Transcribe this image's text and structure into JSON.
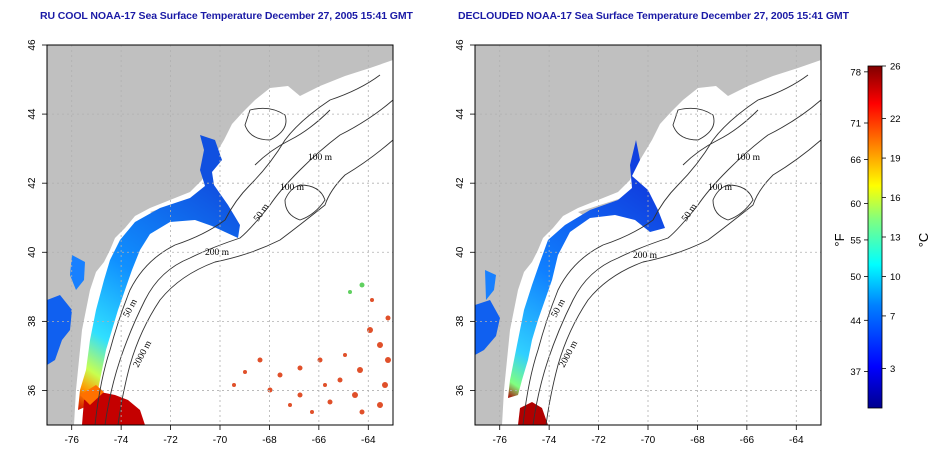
{
  "titles": {
    "left": "RU COOL NOAA-17 Sea Surface Temperature December 27, 2005 15:41 GMT",
    "right": "DECLOUDED NOAA-17 Sea Surface Temperature December 27, 2005 15:41 GMT"
  },
  "axes": {
    "lon_labels": [
      "-76",
      "-74",
      "-72",
      "-70",
      "-68",
      "-66",
      "-64"
    ],
    "lon_values": [
      -76,
      -74,
      -72,
      -70,
      -68,
      -66,
      -64
    ],
    "lon_range": [
      -77,
      -63
    ],
    "lat_labels": [
      "36",
      "38",
      "40",
      "42",
      "44",
      "46"
    ],
    "lat_values": [
      36,
      38,
      40,
      42,
      44,
      46
    ],
    "lat_range": [
      35,
      46
    ],
    "grid": "dotted"
  },
  "contour_labels": {
    "left": [
      "100 m",
      "100 m",
      "50 m",
      "200 m",
      "50 m",
      "2000 m"
    ],
    "right": [
      "100 m",
      "100 m",
      "50 m",
      "200 m",
      "50 m",
      "2000 m"
    ]
  },
  "colorbar": {
    "fahrenheit_unit": "°F",
    "celsius_unit": "°C",
    "fahrenheit_ticks": [
      "78",
      "71",
      "66",
      "60",
      "55",
      "50",
      "44",
      "37"
    ],
    "fahrenheit_values": [
      78,
      71,
      66,
      60,
      55,
      50,
      44,
      37
    ],
    "celsius_ticks": [
      "26",
      "22",
      "19",
      "16",
      "13",
      "10",
      "7",
      "3"
    ],
    "celsius_values": [
      26,
      22,
      19,
      16,
      13,
      10,
      7,
      3
    ],
    "range_c": [
      0,
      26
    ],
    "colors": [
      "#00008f",
      "#0000ff",
      "#0080ff",
      "#00ffff",
      "#80ff80",
      "#ffff00",
      "#ff8000",
      "#ff0000",
      "#800000"
    ]
  },
  "colors": {
    "land": "#c0c0c0",
    "ocean": "#ffffff",
    "title": "#1a1aa6",
    "grid": "#b0b0b0"
  }
}
